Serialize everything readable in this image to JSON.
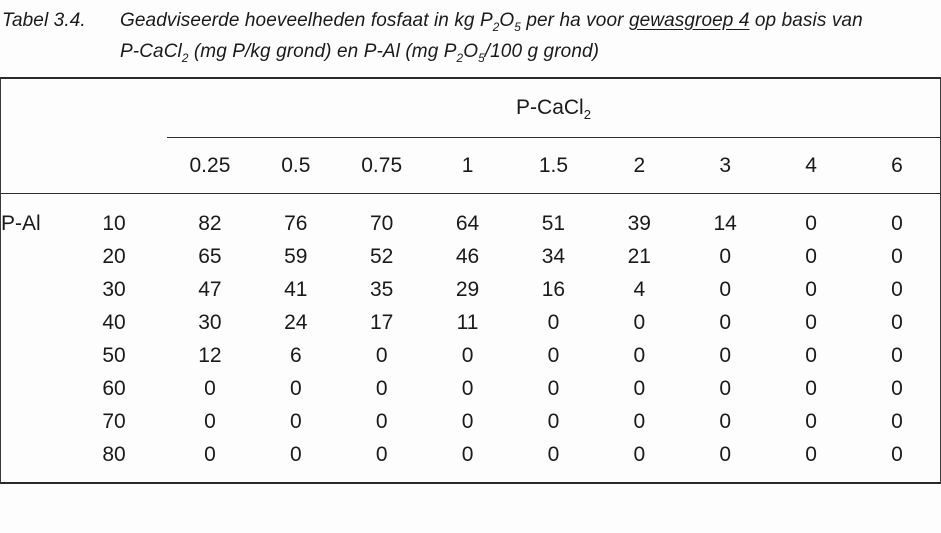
{
  "document": {
    "title": {
      "label": "Tabel 3.4.",
      "line1_part1": "Geadviseerde hoeveelheden fosfaat in kg P",
      "line1_sub1": "2",
      "line1_part2": "O",
      "line1_sub2": "5",
      "line1_part3": " per ha voor ",
      "line1_underlined": "gewasgroep 4",
      "line1_part4": " op basis van",
      "line2_part1": "P-CaCl",
      "line2_sub1": "2",
      "line2_part2": " (mg P/kg grond) en P-Al (mg P",
      "line2_sub2": "2",
      "line2_part3": "O",
      "line2_sub3": "5",
      "line2_part4": "/100 g grond)"
    },
    "colors": {
      "text": "#1a1a1a",
      "rule_line": "#2b2b2b",
      "background": "#fdfdfd"
    }
  },
  "table": {
    "group_header_part1": "P-CaCl",
    "group_header_sub": "2",
    "row_axis_label": "P-Al",
    "col_headers": [
      "0.25",
      "0.5",
      "0.75",
      "1",
      "1.5",
      "2",
      "3",
      "4",
      "6"
    ],
    "rows": [
      {
        "label": "10",
        "values": [
          82,
          76,
          70,
          64,
          51,
          39,
          14,
          0,
          0
        ]
      },
      {
        "label": "20",
        "values": [
          65,
          59,
          52,
          46,
          34,
          21,
          0,
          0,
          0
        ]
      },
      {
        "label": "30",
        "values": [
          47,
          41,
          35,
          29,
          16,
          4,
          0,
          0,
          0
        ]
      },
      {
        "label": "40",
        "values": [
          30,
          24,
          17,
          11,
          0,
          0,
          0,
          0,
          0
        ]
      },
      {
        "label": "50",
        "values": [
          12,
          6,
          0,
          0,
          0,
          0,
          0,
          0,
          0
        ]
      },
      {
        "label": "60",
        "values": [
          0,
          0,
          0,
          0,
          0,
          0,
          0,
          0,
          0
        ]
      },
      {
        "label": "70",
        "values": [
          0,
          0,
          0,
          0,
          0,
          0,
          0,
          0,
          0
        ]
      },
      {
        "label": "80",
        "values": [
          0,
          0,
          0,
          0,
          0,
          0,
          0,
          0,
          0
        ]
      }
    ]
  }
}
